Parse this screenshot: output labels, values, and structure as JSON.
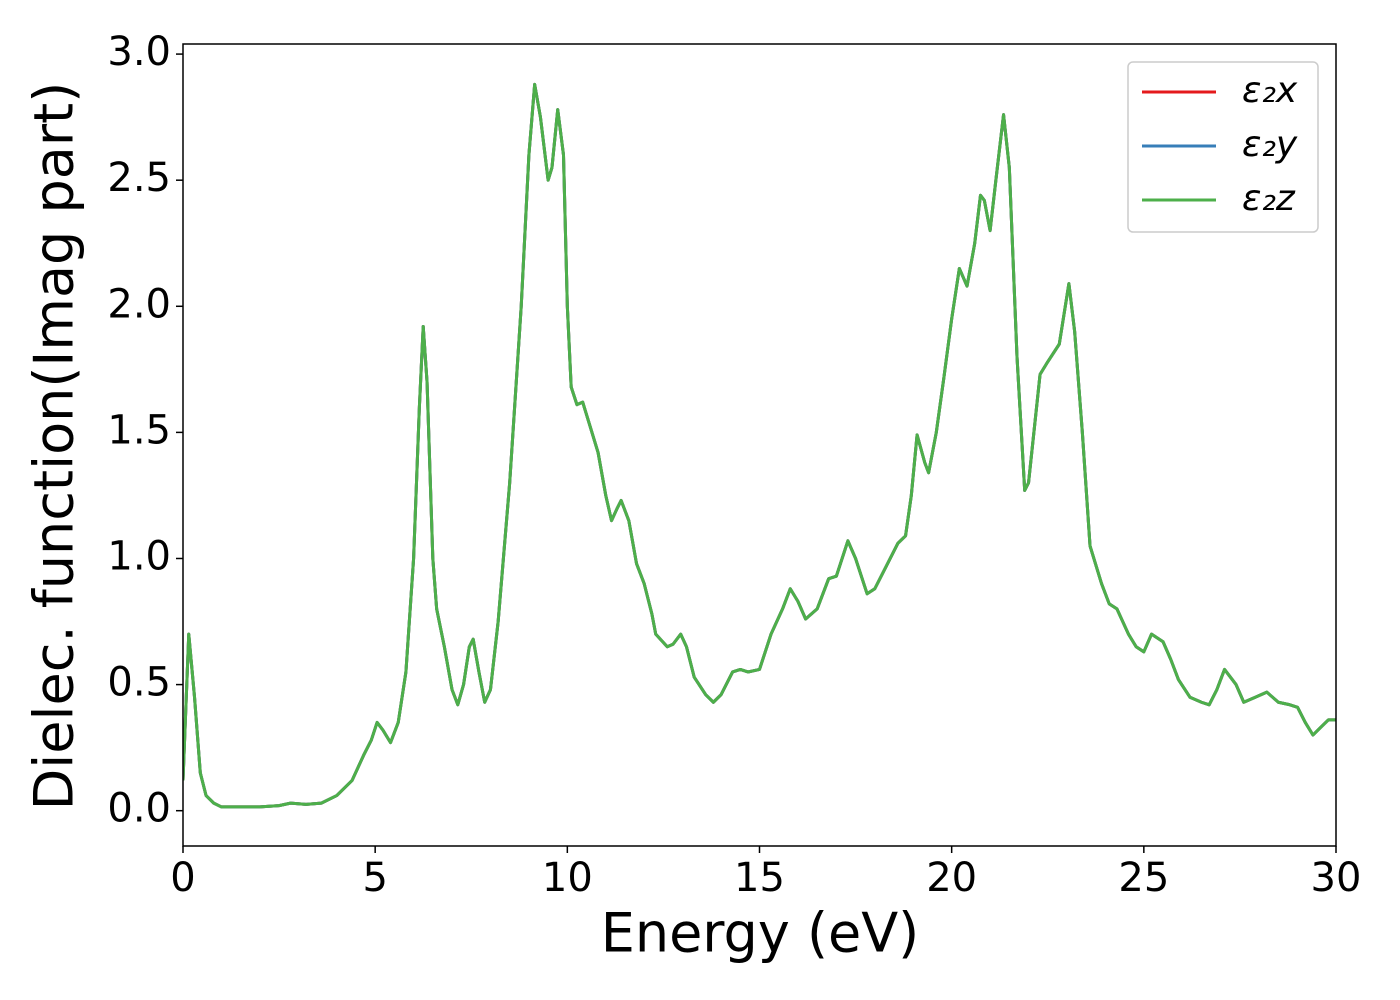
{
  "chart_data": {
    "type": "line",
    "xlabel": "Energy (eV)",
    "ylabel": "Dielec. function(Imag part)",
    "xlim": [
      0,
      30
    ],
    "ylim": [
      -0.14,
      3.04
    ],
    "xticks": [
      0,
      5,
      10,
      15,
      20,
      25,
      30
    ],
    "yticks": [
      {
        "value": 0,
        "label": "0.0"
      },
      {
        "value": 0.5,
        "label": "0.5"
      },
      {
        "value": 1,
        "label": "1.0"
      },
      {
        "value": 1.5,
        "label": "1.5"
      },
      {
        "value": 2,
        "label": "2.0"
      },
      {
        "value": 2.5,
        "label": "2.5"
      },
      {
        "value": 3,
        "label": "3.0"
      }
    ],
    "grid": false,
    "legend": "upper right",
    "x": [
      0,
      0.15,
      0.3,
      0.45,
      0.6,
      0.8,
      1.0,
      1.5,
      2.0,
      2.5,
      2.8,
      3.2,
      3.6,
      4.0,
      4.4,
      4.7,
      4.9,
      5.05,
      5.2,
      5.4,
      5.6,
      5.8,
      6.0,
      6.15,
      6.25,
      6.35,
      6.5,
      6.6,
      6.8,
      7.0,
      7.15,
      7.3,
      7.45,
      7.55,
      7.7,
      7.85,
      8.0,
      8.2,
      8.5,
      8.8,
      9.0,
      9.15,
      9.3,
      9.5,
      9.6,
      9.75,
      9.9,
      10.0,
      10.1,
      10.25,
      10.4,
      10.6,
      10.8,
      11.0,
      11.15,
      11.3,
      11.4,
      11.6,
      11.8,
      12.0,
      12.2,
      12.3,
      12.6,
      12.75,
      12.95,
      13.1,
      13.3,
      13.6,
      13.8,
      14.0,
      14.3,
      14.5,
      14.7,
      15.0,
      15.3,
      15.6,
      15.8,
      16.0,
      16.2,
      16.5,
      16.8,
      17.0,
      17.3,
      17.5,
      17.8,
      18.0,
      18.3,
      18.6,
      18.8,
      18.95,
      19.1,
      19.3,
      19.4,
      19.6,
      19.8,
      20.0,
      20.2,
      20.4,
      20.6,
      20.75,
      20.85,
      21.0,
      21.15,
      21.35,
      21.5,
      21.7,
      21.9,
      22.0,
      22.3,
      22.5,
      22.8,
      23.05,
      23.2,
      23.4,
      23.6,
      23.9,
      24.1,
      24.3,
      24.6,
      24.8,
      25.0,
      25.2,
      25.5,
      25.7,
      25.9,
      26.2,
      26.5,
      26.7,
      26.9,
      27.1,
      27.4,
      27.6,
      27.9,
      28.2,
      28.5,
      28.8,
      29.0,
      29.2,
      29.4,
      29.6,
      29.8,
      30.0
    ],
    "series": [
      {
        "name": "ε₂x",
        "color": "#e41a1c",
        "values": [
          0.12,
          0.7,
          0.45,
          0.15,
          0.06,
          0.03,
          0.015,
          0.015,
          0.015,
          0.02,
          0.03,
          0.025,
          0.03,
          0.06,
          0.12,
          0.22,
          0.28,
          0.35,
          0.32,
          0.27,
          0.35,
          0.55,
          1.0,
          1.6,
          1.92,
          1.7,
          1.0,
          0.8,
          0.65,
          0.48,
          0.42,
          0.5,
          0.65,
          0.68,
          0.55,
          0.43,
          0.48,
          0.75,
          1.3,
          2.0,
          2.6,
          2.88,
          2.75,
          2.5,
          2.55,
          2.78,
          2.6,
          2.0,
          1.68,
          1.61,
          1.62,
          1.52,
          1.42,
          1.25,
          1.15,
          1.2,
          1.23,
          1.15,
          0.98,
          0.9,
          0.78,
          0.7,
          0.65,
          0.66,
          0.7,
          0.65,
          0.53,
          0.46,
          0.43,
          0.46,
          0.55,
          0.56,
          0.55,
          0.56,
          0.7,
          0.8,
          0.88,
          0.83,
          0.76,
          0.8,
          0.92,
          0.93,
          1.07,
          1.0,
          0.86,
          0.88,
          0.97,
          1.06,
          1.09,
          1.25,
          1.49,
          1.38,
          1.34,
          1.5,
          1.72,
          1.95,
          2.15,
          2.08,
          2.25,
          2.44,
          2.42,
          2.3,
          2.5,
          2.76,
          2.55,
          1.8,
          1.27,
          1.3,
          1.73,
          1.78,
          1.85,
          2.09,
          1.9,
          1.5,
          1.05,
          0.9,
          0.82,
          0.8,
          0.7,
          0.65,
          0.63,
          0.7,
          0.67,
          0.6,
          0.52,
          0.45,
          0.43,
          0.42,
          0.48,
          0.56,
          0.5,
          0.43,
          0.45,
          0.47,
          0.43,
          0.42,
          0.41,
          0.35,
          0.3,
          0.33,
          0.36,
          0.36
        ]
      },
      {
        "name": "ε₂y",
        "color": "#377eb8",
        "values": [
          0.12,
          0.7,
          0.45,
          0.15,
          0.06,
          0.03,
          0.015,
          0.015,
          0.015,
          0.02,
          0.03,
          0.025,
          0.03,
          0.06,
          0.12,
          0.22,
          0.28,
          0.35,
          0.32,
          0.27,
          0.35,
          0.55,
          1.0,
          1.6,
          1.92,
          1.7,
          1.0,
          0.8,
          0.65,
          0.48,
          0.42,
          0.5,
          0.65,
          0.68,
          0.55,
          0.43,
          0.48,
          0.75,
          1.3,
          2.0,
          2.6,
          2.88,
          2.75,
          2.5,
          2.55,
          2.78,
          2.6,
          2.0,
          1.68,
          1.61,
          1.62,
          1.52,
          1.42,
          1.25,
          1.15,
          1.2,
          1.23,
          1.15,
          0.98,
          0.9,
          0.78,
          0.7,
          0.65,
          0.66,
          0.7,
          0.65,
          0.53,
          0.46,
          0.43,
          0.46,
          0.55,
          0.56,
          0.55,
          0.56,
          0.7,
          0.8,
          0.88,
          0.83,
          0.76,
          0.8,
          0.92,
          0.93,
          1.07,
          1.0,
          0.86,
          0.88,
          0.97,
          1.06,
          1.09,
          1.25,
          1.49,
          1.38,
          1.34,
          1.5,
          1.72,
          1.95,
          2.15,
          2.08,
          2.25,
          2.44,
          2.42,
          2.3,
          2.5,
          2.76,
          2.55,
          1.8,
          1.27,
          1.3,
          1.73,
          1.78,
          1.85,
          2.09,
          1.9,
          1.5,
          1.05,
          0.9,
          0.82,
          0.8,
          0.7,
          0.65,
          0.63,
          0.7,
          0.67,
          0.6,
          0.52,
          0.45,
          0.43,
          0.42,
          0.48,
          0.56,
          0.5,
          0.43,
          0.45,
          0.47,
          0.43,
          0.42,
          0.41,
          0.35,
          0.3,
          0.33,
          0.36,
          0.36
        ]
      },
      {
        "name": "ε₂z",
        "color": "#4daf4a",
        "values": [
          0.12,
          0.7,
          0.45,
          0.15,
          0.06,
          0.03,
          0.015,
          0.015,
          0.015,
          0.02,
          0.03,
          0.025,
          0.03,
          0.06,
          0.12,
          0.22,
          0.28,
          0.35,
          0.32,
          0.27,
          0.35,
          0.55,
          1.0,
          1.6,
          1.92,
          1.7,
          1.0,
          0.8,
          0.65,
          0.48,
          0.42,
          0.5,
          0.65,
          0.68,
          0.55,
          0.43,
          0.48,
          0.75,
          1.3,
          2.0,
          2.6,
          2.88,
          2.75,
          2.5,
          2.55,
          2.78,
          2.6,
          2.0,
          1.68,
          1.61,
          1.62,
          1.52,
          1.42,
          1.25,
          1.15,
          1.2,
          1.23,
          1.15,
          0.98,
          0.9,
          0.78,
          0.7,
          0.65,
          0.66,
          0.7,
          0.65,
          0.53,
          0.46,
          0.43,
          0.46,
          0.55,
          0.56,
          0.55,
          0.56,
          0.7,
          0.8,
          0.88,
          0.83,
          0.76,
          0.8,
          0.92,
          0.93,
          1.07,
          1.0,
          0.86,
          0.88,
          0.97,
          1.06,
          1.09,
          1.25,
          1.49,
          1.38,
          1.34,
          1.5,
          1.72,
          1.95,
          2.15,
          2.08,
          2.25,
          2.44,
          2.42,
          2.3,
          2.5,
          2.76,
          2.55,
          1.8,
          1.27,
          1.3,
          1.73,
          1.78,
          1.85,
          2.09,
          1.9,
          1.5,
          1.05,
          0.9,
          0.82,
          0.8,
          0.7,
          0.65,
          0.63,
          0.7,
          0.67,
          0.6,
          0.52,
          0.45,
          0.43,
          0.42,
          0.48,
          0.56,
          0.5,
          0.43,
          0.45,
          0.47,
          0.43,
          0.42,
          0.41,
          0.35,
          0.3,
          0.33,
          0.36,
          0.36
        ]
      }
    ]
  }
}
